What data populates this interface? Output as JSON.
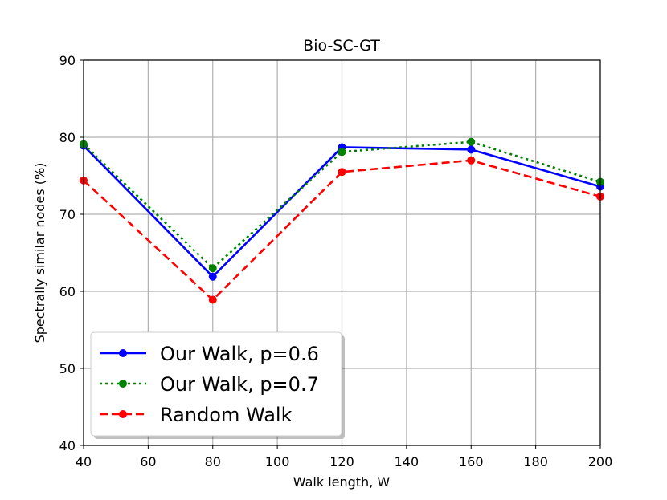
{
  "chart_data": {
    "type": "line",
    "title": "Bio-SC-GT",
    "xlabel": "Walk length, W",
    "ylabel": "Spectrally similar nodes (%)",
    "xlim": [
      40,
      200
    ],
    "ylim": [
      40,
      90
    ],
    "xticks": [
      40,
      60,
      80,
      100,
      120,
      140,
      160,
      180,
      200
    ],
    "yticks": [
      40,
      50,
      60,
      70,
      80,
      90
    ],
    "grid": true,
    "legend_position": "lower-left",
    "x": [
      40,
      80,
      120,
      160,
      200
    ],
    "series": [
      {
        "name": "Our Walk, p=0.6",
        "values": [
          78.9,
          61.9,
          78.7,
          78.4,
          73.6
        ],
        "color": "#0000ff",
        "style": "solid"
      },
      {
        "name": "Our Walk, p=0.7",
        "values": [
          79.1,
          63.0,
          78.1,
          79.4,
          74.2
        ],
        "color": "#008000",
        "style": "dotted"
      },
      {
        "name": "Random Walk",
        "values": [
          74.4,
          58.9,
          75.5,
          77.0,
          72.3
        ],
        "color": "#ff0000",
        "style": "dashed"
      }
    ]
  }
}
